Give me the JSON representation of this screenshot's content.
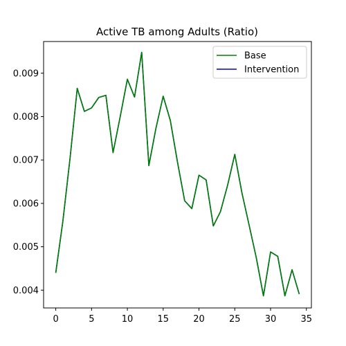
{
  "chart_data": {
    "type": "line",
    "title": "Active TB among Adults (Ratio)",
    "xlabel": "",
    "ylabel": "",
    "xlim": [
      -1.7,
      35.7
    ],
    "ylim": [
      0.00359,
      0.00973
    ],
    "xticks": [
      0,
      5,
      10,
      15,
      20,
      25,
      30,
      35
    ],
    "xtick_labels": [
      "0",
      "5",
      "10",
      "15",
      "20",
      "25",
      "30",
      "35"
    ],
    "yticks": [
      0.004,
      0.005,
      0.006,
      0.007,
      0.008,
      0.009
    ],
    "ytick_labels": [
      "0.004",
      "0.005",
      "0.006",
      "0.007",
      "0.008",
      "0.009"
    ],
    "grid": false,
    "legend_position": "top-right",
    "x": [
      0,
      1,
      2,
      3,
      4,
      5,
      6,
      7,
      8,
      9,
      10,
      11,
      12,
      13,
      14,
      15,
      16,
      17,
      18,
      19,
      20,
      21,
      22,
      23,
      24,
      25,
      26,
      27,
      28,
      29,
      30,
      31,
      32,
      33,
      34
    ],
    "series": [
      {
        "name": "Intervention",
        "color": "#0000cc",
        "values": [
          0.0044,
          0.0056,
          0.00705,
          0.00865,
          0.00812,
          0.0082,
          0.00844,
          0.00849,
          0.00717,
          0.008,
          0.00886,
          0.00845,
          0.00948,
          0.00687,
          0.00774,
          0.00847,
          0.00791,
          0.00695,
          0.00606,
          0.00588,
          0.00665,
          0.00654,
          0.00548,
          0.00581,
          0.00642,
          0.00713,
          0.00624,
          0.0055,
          0.00475,
          0.00387,
          0.00488,
          0.00478,
          0.00387,
          0.00447,
          0.00391
        ]
      },
      {
        "name": "Base",
        "color": "#008000",
        "values": [
          0.0044,
          0.0056,
          0.00705,
          0.00865,
          0.00812,
          0.0082,
          0.00844,
          0.00849,
          0.00717,
          0.008,
          0.00886,
          0.00845,
          0.00948,
          0.00687,
          0.00774,
          0.00847,
          0.00791,
          0.00695,
          0.00606,
          0.00588,
          0.00665,
          0.00654,
          0.00548,
          0.00581,
          0.00642,
          0.00713,
          0.00624,
          0.0055,
          0.00475,
          0.00387,
          0.00488,
          0.00478,
          0.00387,
          0.00447,
          0.00391
        ]
      }
    ],
    "legend": [
      {
        "label": "Base",
        "color": "#008000"
      },
      {
        "label": "Intervention",
        "color": "#0000cc"
      }
    ]
  }
}
